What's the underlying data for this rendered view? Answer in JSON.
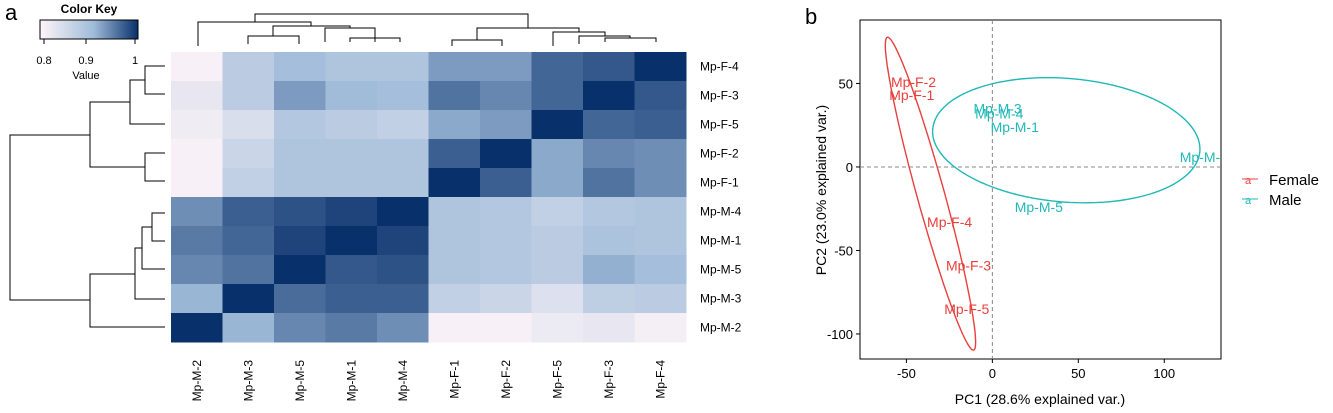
{
  "panel_labels": {
    "a": "a",
    "b": "b"
  },
  "colors": {
    "low": "#fff5f9",
    "mid": "#9fbbd9",
    "high": "#08306b",
    "female": "#e8403c",
    "male": "#20b8b8",
    "refline": "#888888"
  },
  "chart_data": [
    {
      "type": "heatmap",
      "color_key": {
        "title": "Color Key",
        "xlabel": "Value",
        "ticks": [
          "0.8",
          "0.9",
          "1"
        ],
        "range": [
          0.77,
          1.0
        ]
      },
      "rows": [
        "Mp-F-4",
        "Mp-F-3",
        "Mp-F-5",
        "Mp-F-2",
        "Mp-F-1",
        "Mp-M-4",
        "Mp-M-1",
        "Mp-M-5",
        "Mp-M-3",
        "Mp-M-2"
      ],
      "columns": [
        "Mp-M-2",
        "Mp-M-3",
        "Mp-M-5",
        "Mp-M-1",
        "Mp-M-4",
        "Mp-F-1",
        "Mp-F-2",
        "Mp-F-5",
        "Mp-F-3",
        "Mp-F-4"
      ],
      "values": [
        [
          0.78,
          0.86,
          0.89,
          0.875,
          0.875,
          0.92,
          0.92,
          0.96,
          0.97,
          1.0
        ],
        [
          0.8,
          0.86,
          0.92,
          0.895,
          0.89,
          0.95,
          0.935,
          0.96,
          1.0,
          0.97
        ],
        [
          0.79,
          0.82,
          0.87,
          0.86,
          0.85,
          0.91,
          0.92,
          1.0,
          0.96,
          0.965
        ],
        [
          0.78,
          0.84,
          0.875,
          0.875,
          0.875,
          0.965,
          1.0,
          0.91,
          0.935,
          0.93
        ],
        [
          0.78,
          0.85,
          0.875,
          0.875,
          0.875,
          1.0,
          0.965,
          0.91,
          0.95,
          0.93
        ],
        [
          0.93,
          0.965,
          0.975,
          0.985,
          1.0,
          0.875,
          0.87,
          0.85,
          0.87,
          0.875
        ],
        [
          0.945,
          0.96,
          0.985,
          1.0,
          0.985,
          0.875,
          0.87,
          0.86,
          0.88,
          0.875
        ],
        [
          0.935,
          0.95,
          1.0,
          0.97,
          0.975,
          0.875,
          0.87,
          0.86,
          0.905,
          0.89
        ],
        [
          0.9,
          1.0,
          0.955,
          0.965,
          0.965,
          0.85,
          0.84,
          0.815,
          0.855,
          0.86
        ],
        [
          1.0,
          0.9,
          0.935,
          0.945,
          0.93,
          0.78,
          0.78,
          0.795,
          0.8,
          0.785
        ]
      ]
    },
    {
      "type": "scatter",
      "xlabel": "PC1 (28.6% explained var.)",
      "ylabel": "PC2 (23.0% explained var.)",
      "xlim": [
        -77,
        133
      ],
      "ylim": [
        -115,
        88
      ],
      "xticks": [
        "-50",
        "0",
        "50",
        "100"
      ],
      "yticks": [
        "50",
        "0",
        "-50",
        "-100"
      ],
      "legend_position": "right",
      "series": [
        {
          "name": "Female",
          "points": [
            {
              "label": "Mp-F-2",
              "x": -59,
              "y": 51
            },
            {
              "label": "Mp-F-1",
              "x": -60,
              "y": 43
            },
            {
              "label": "Mp-F-4",
              "x": -38,
              "y": -33
            },
            {
              "label": "Mp-F-3",
              "x": -27,
              "y": -59
            },
            {
              "label": "Mp-F-5",
              "x": -28,
              "y": -85
            }
          ],
          "ellipse": {
            "cx": -36,
            "cy": -16,
            "rx": 97,
            "ry": 8,
            "angle_deg": -75
          }
        },
        {
          "name": "Male",
          "points": [
            {
              "label": "Mp-M-3",
              "x": -11,
              "y": 35
            },
            {
              "label": "Mp-M-4",
              "x": -10,
              "y": 32
            },
            {
              "label": "Mp-M-1",
              "x": -1,
              "y": 24
            },
            {
              "label": "Mp-M-",
              "x": 109,
              "y": 6
            },
            {
              "label": "Mp-M-5",
              "x": 13,
              "y": -24
            }
          ],
          "ellipse": {
            "cx": 43,
            "cy": 16,
            "rx": 78,
            "ry": 37,
            "angle_deg": -5
          }
        }
      ]
    }
  ]
}
